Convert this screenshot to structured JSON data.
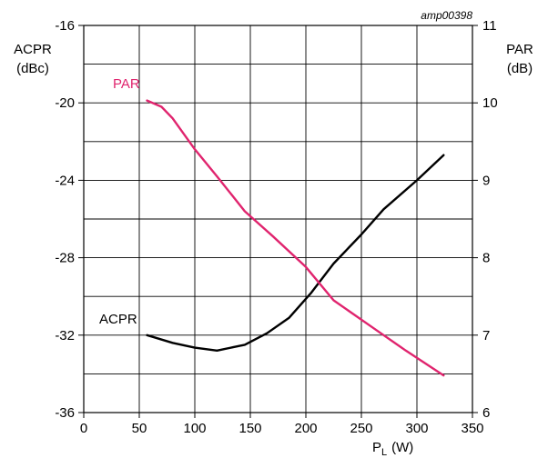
{
  "chart_data": {
    "type": "line",
    "figure_id": "amp00398",
    "x_axis": {
      "label_main": "P",
      "label_sub": "L",
      "label_unit": "(W)",
      "range": [
        0,
        350
      ],
      "ticks": [
        0,
        50,
        100,
        150,
        200,
        250,
        300,
        350
      ]
    },
    "y_left": {
      "label_line1": "ACPR",
      "label_line2": "(dBc)",
      "range": [
        -36,
        -16
      ],
      "ticks": [
        -36,
        -32,
        -28,
        -24,
        -20,
        -16
      ]
    },
    "y_right": {
      "label_line1": "PAR",
      "label_line2": "(dB)",
      "range": [
        6,
        11
      ],
      "ticks": [
        6,
        7,
        8,
        9,
        10,
        11
      ]
    },
    "grid": true,
    "series": [
      {
        "name": "ACPR",
        "axis": "left",
        "color": "#000000",
        "x": [
          57,
          80,
          100,
          120,
          145,
          165,
          185,
          205,
          225,
          250,
          270,
          300,
          324
        ],
        "y": [
          -32.0,
          -32.4,
          -32.65,
          -32.8,
          -32.5,
          -31.9,
          -31.1,
          -29.8,
          -28.3,
          -26.8,
          -25.5,
          -24.0,
          -22.7
        ]
      },
      {
        "name": "PAR",
        "axis": "right",
        "color": "#e0246e",
        "x": [
          57,
          70,
          80,
          100,
          120,
          145,
          170,
          200,
          225,
          260,
          290,
          324
        ],
        "y": [
          10.03,
          9.95,
          9.8,
          9.4,
          9.05,
          8.6,
          8.28,
          7.88,
          7.45,
          7.1,
          6.8,
          6.48
        ]
      }
    ]
  }
}
